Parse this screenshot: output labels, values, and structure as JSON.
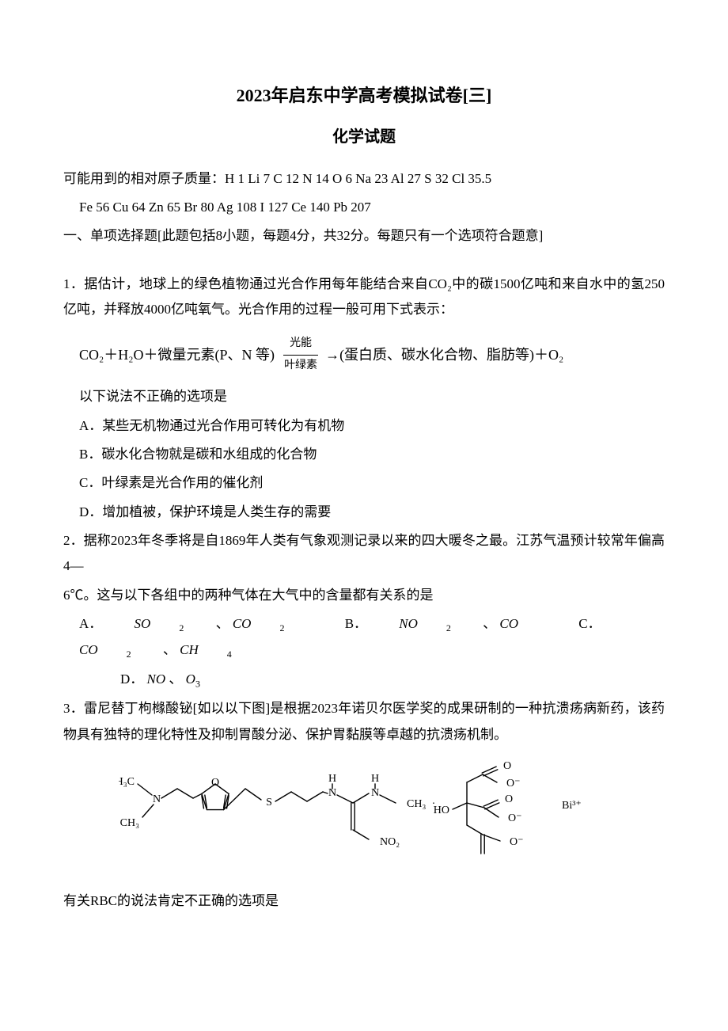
{
  "title": {
    "main": "2023年启东中学高考模拟试卷[三]",
    "sub": "化学试题"
  },
  "atomic_masses": {
    "line1": "可能用到的相对原子质量：H 1  Li 7  C 12  N 14  O 6  Na 23  Al 27  S 32  Cl 35.5",
    "line2": "Fe 56  Cu 64  Zn 65  Br 80  Ag 108  I 127  Ce 140  Pb 207"
  },
  "section1_header": "一、单项选择题[此题包括8小题，每题4分，共32分。每题只有一个选项符合题意]",
  "q1": {
    "stem": "1．据估计，地球上的绿色植物通过光合作用每年能结合来自CO₂中的碳1500亿吨和来自水中的氢250亿吨，并释放4000亿吨氧气。光合作用的过程一般可用下式表示：",
    "eq_left": "CO₂＋H₂O＋微量元素(P、N 等)",
    "eq_top": "光能",
    "eq_bot": "叶绿素",
    "eq_right": "(蛋白质、碳水化合物、脂肪等)＋O₂",
    "tail": "以下说法不正确的选项是",
    "A": "A．某些无机物通过光合作用可转化为有机物",
    "B": "B．碳水化合物就是碳和水组成的化合物",
    "C": "C．叶绿素是光合作用的催化剂",
    "D": "D．增加植被，保护环境是人类生存的需要"
  },
  "q2": {
    "stem1": "2．据称2023年冬季将是自1869年人类有气象观测记录以来的四大暖冬之最。江苏气温预计较常年偏高4—",
    "stem2": "6℃。这与以下各组中的两种气体在大气中的含量都有关系的是",
    "optA_label": "A．",
    "optA_v1": "SO",
    "optA_s1": "2",
    "optA_v2": "CO",
    "optA_s2": "2",
    "optB_label": "B．",
    "optB_v1": "NO",
    "optB_s1": "2",
    "optB_v2": "CO",
    "optC_label": "C．",
    "optC_v1": "CO",
    "optC_s1": "2",
    "optC_v2": "CH",
    "optC_s2": "4",
    "optD_label": "D．",
    "optD_v1": "NO",
    "optD_v2": "O",
    "optD_s2": "3"
  },
  "q3": {
    "stem": "3．雷尼替丁枸橼酸铋[如以以下图]是根据2023年诺贝尔医学奖的成果研制的一种抗溃疡病新药，该药物具有独特的理化特性及抑制胃酸分泌、保护胃黏膜等卓越的抗溃疡机制。",
    "tail": "有关RBC的说法肯定不正确的选项是"
  },
  "diagram": {
    "labels": {
      "h3c_top": "H₃C",
      "n1": "N",
      "ch3_bot": "CH₃",
      "o_ring": "O",
      "s": "S",
      "h_n1": "H",
      "n2": "N",
      "h_n2": "H",
      "n3": "N",
      "ch3_r": "CH₃",
      "no2": "NO₂",
      "dot": "·",
      "ho": "HO",
      "o1": "O",
      "om1": "O⁻",
      "o2": "O",
      "om2": "O⁻",
      "om3": "O⁻",
      "bi": "Bi³⁺"
    },
    "colors": {
      "stroke": "#000000",
      "fill": "#ffffff",
      "text": "#000000"
    },
    "stroke_width": 1.4,
    "font_size": 14
  }
}
